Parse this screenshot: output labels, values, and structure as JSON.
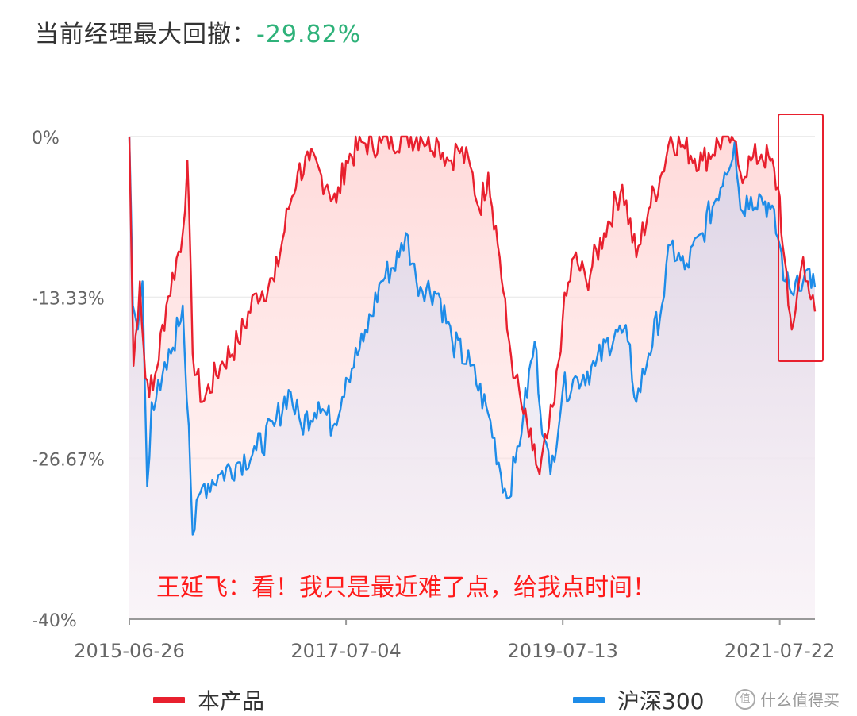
{
  "header": {
    "title_label": "当前经理最大回撤：",
    "title_value": "-29.82%"
  },
  "annotation": "王延飞：看！我只是最近难了点，给我点时间！",
  "watermark": "什么值得买",
  "colors": {
    "product": "#e8202e",
    "index": "#1e8ce8",
    "drawdown_value": "#2fb27a",
    "highlight_box": "#e8202e",
    "annotation": "#ff1a1a"
  },
  "chart_data": {
    "type": "area",
    "title": "当前经理最大回撤：-29.82%",
    "ylim": [
      -40,
      0
    ],
    "yticks": [
      0,
      -13.33,
      -26.67,
      -40
    ],
    "ytick_labels": [
      "0%",
      "-13.33%",
      "-26.67%",
      "-40%"
    ],
    "xticks": [
      "2015-06-26",
      "2017-07-04",
      "2019-07-13",
      "2021-07-22"
    ],
    "x_range": [
      "2015-06-26",
      "2021-11-19"
    ],
    "grid": "horizontal",
    "legend_position": "bottom",
    "highlight_period": [
      "2021-08-10",
      "2021-11-19"
    ],
    "series": [
      {
        "name": "本产品",
        "points": [
          [
            "2015-06-26",
            0
          ],
          [
            "2015-07-10",
            -19
          ],
          [
            "2015-08-01",
            -12
          ],
          [
            "2015-08-20",
            -20
          ],
          [
            "2015-09-15",
            -21
          ],
          [
            "2015-10-30",
            -14
          ],
          [
            "2015-12-25",
            -8
          ],
          [
            "2016-01-10",
            -2
          ],
          [
            "2016-01-28",
            -18
          ],
          [
            "2016-03-01",
            -22
          ],
          [
            "2016-05-01",
            -19
          ],
          [
            "2016-07-01",
            -17
          ],
          [
            "2016-09-01",
            -13
          ],
          [
            "2016-11-01",
            -12
          ],
          [
            "2016-12-20",
            -6
          ],
          [
            "2017-01-20",
            -3
          ],
          [
            "2017-03-01",
            -2
          ],
          [
            "2017-05-01",
            -4
          ],
          [
            "2017-06-01",
            -5.5
          ],
          [
            "2017-07-04",
            -2
          ],
          [
            "2017-09-01",
            -0.5
          ],
          [
            "2017-11-01",
            -0.5
          ],
          [
            "2018-01-15",
            0
          ],
          [
            "2018-03-15",
            0
          ],
          [
            "2018-05-15",
            -0.5
          ],
          [
            "2018-06-20",
            -2
          ],
          [
            "2018-07-20",
            -1
          ],
          [
            "2018-09-01",
            -2.5
          ],
          [
            "2018-10-01",
            -6
          ],
          [
            "2018-11-01",
            -3
          ],
          [
            "2018-12-10",
            -10
          ],
          [
            "2019-01-04",
            -16
          ],
          [
            "2019-02-01",
            -20
          ],
          [
            "2019-03-01",
            -23
          ],
          [
            "2019-04-01",
            -26
          ],
          [
            "2019-04-25",
            -28
          ],
          [
            "2019-05-20",
            -25
          ],
          [
            "2019-06-15",
            -22
          ],
          [
            "2019-07-13",
            -15
          ],
          [
            "2019-08-20",
            -10
          ],
          [
            "2019-10-01",
            -12
          ],
          [
            "2019-12-01",
            -8
          ],
          [
            "2020-02-01",
            -4
          ],
          [
            "2020-03-20",
            -10
          ],
          [
            "2020-05-01",
            -6
          ],
          [
            "2020-06-15",
            -3
          ],
          [
            "2020-07-15",
            0
          ],
          [
            "2020-09-01",
            -1
          ],
          [
            "2020-11-01",
            -2
          ],
          [
            "2021-01-15",
            0
          ],
          [
            "2021-02-15",
            -0.3
          ],
          [
            "2021-03-10",
            -3
          ],
          [
            "2021-04-15",
            -2
          ],
          [
            "2021-05-20",
            -1.5
          ],
          [
            "2021-06-20",
            -2
          ],
          [
            "2021-07-22",
            -5
          ],
          [
            "2021-08-01",
            -9
          ],
          [
            "2021-08-20",
            -14
          ],
          [
            "2021-09-01",
            -16
          ],
          [
            "2021-09-20",
            -13
          ],
          [
            "2021-10-10",
            -10
          ],
          [
            "2021-10-25",
            -12
          ],
          [
            "2021-11-05",
            -13.5
          ],
          [
            "2021-11-19",
            -14.5
          ]
        ]
      },
      {
        "name": "沪深300",
        "points": [
          [
            "2015-06-26",
            0
          ],
          [
            "2015-07-08",
            -14
          ],
          [
            "2015-07-25",
            -16
          ],
          [
            "2015-08-10",
            -12
          ],
          [
            "2015-08-26",
            -29
          ],
          [
            "2015-09-10",
            -22
          ],
          [
            "2015-10-10",
            -21
          ],
          [
            "2015-11-15",
            -18
          ],
          [
            "2015-12-25",
            -14
          ],
          [
            "2016-01-15",
            -24
          ],
          [
            "2016-01-28",
            -33
          ],
          [
            "2016-03-01",
            -29
          ],
          [
            "2016-05-01",
            -28
          ],
          [
            "2016-07-01",
            -27
          ],
          [
            "2016-09-01",
            -26
          ],
          [
            "2016-11-01",
            -24
          ],
          [
            "2016-12-20",
            -21
          ],
          [
            "2017-02-01",
            -24
          ],
          [
            "2017-04-01",
            -22
          ],
          [
            "2017-05-20",
            -24
          ],
          [
            "2017-07-04",
            -20
          ],
          [
            "2017-09-01",
            -17
          ],
          [
            "2017-11-01",
            -12
          ],
          [
            "2018-01-01",
            -10
          ],
          [
            "2018-01-24",
            -8
          ],
          [
            "2018-03-01",
            -12
          ],
          [
            "2018-05-15",
            -13
          ],
          [
            "2018-07-01",
            -17
          ],
          [
            "2018-09-01",
            -19
          ],
          [
            "2018-11-01",
            -23
          ],
          [
            "2019-01-04",
            -30
          ],
          [
            "2019-02-01",
            -27
          ],
          [
            "2019-03-01",
            -23
          ],
          [
            "2019-04-08",
            -17
          ],
          [
            "2019-05-10",
            -25
          ],
          [
            "2019-06-01",
            -28
          ],
          [
            "2019-07-13",
            -21
          ],
          [
            "2019-09-01",
            -20
          ],
          [
            "2019-11-01",
            -19
          ],
          [
            "2020-01-10",
            -16
          ],
          [
            "2020-02-20",
            -17
          ],
          [
            "2020-03-20",
            -22
          ],
          [
            "2020-05-01",
            -18
          ],
          [
            "2020-06-15",
            -14
          ],
          [
            "2020-07-15",
            -9
          ],
          [
            "2020-09-01",
            -11
          ],
          [
            "2020-11-01",
            -8
          ],
          [
            "2021-01-15",
            -3
          ],
          [
            "2021-02-18",
            -0.5
          ],
          [
            "2021-03-10",
            -6
          ],
          [
            "2021-04-15",
            -5
          ],
          [
            "2021-05-20",
            -5
          ],
          [
            "2021-06-20",
            -6
          ],
          [
            "2021-07-22",
            -9
          ],
          [
            "2021-08-10",
            -12
          ],
          [
            "2021-09-01",
            -13
          ],
          [
            "2021-09-20",
            -11.5
          ],
          [
            "2021-10-10",
            -12
          ],
          [
            "2021-10-25",
            -11
          ],
          [
            "2021-11-19",
            -12.5
          ]
        ]
      }
    ]
  }
}
